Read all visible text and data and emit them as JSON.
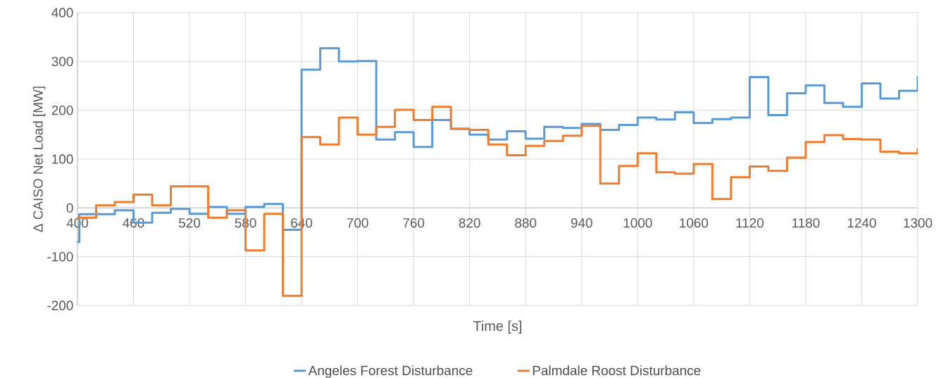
{
  "chart_data": {
    "type": "step",
    "xlabel": "Time [s]",
    "ylabel": "Δ CAISO Net Load [MW]",
    "x": [
      400,
      420,
      440,
      460,
      480,
      500,
      520,
      540,
      560,
      580,
      600,
      620,
      640,
      660,
      680,
      700,
      720,
      740,
      760,
      780,
      800,
      820,
      840,
      860,
      880,
      900,
      920,
      940,
      960,
      980,
      1000,
      1020,
      1040,
      1060,
      1080,
      1100,
      1120,
      1140,
      1160,
      1180,
      1200,
      1220,
      1240,
      1260,
      1280,
      1300
    ],
    "series": [
      {
        "name": "Angeles Forest Disturbance",
        "color": "#5b9bd5",
        "x": [
          400,
          402,
          420,
          440,
          460,
          480,
          500,
          520,
          540,
          560,
          580,
          600,
          620,
          640,
          660,
          680,
          700,
          720,
          740,
          760,
          780,
          800,
          820,
          840,
          860,
          880,
          900,
          920,
          940,
          960,
          980,
          1000,
          1020,
          1040,
          1060,
          1080,
          1100,
          1120,
          1140,
          1160,
          1180,
          1200,
          1220,
          1240,
          1260,
          1280,
          1300
        ],
        "values": [
          -70,
          -13,
          -13,
          -5,
          -30,
          -10,
          -2,
          -12,
          2,
          -12,
          2,
          8,
          -45,
          283,
          327,
          300,
          301,
          140,
          155,
          125,
          180,
          162,
          150,
          140,
          157,
          142,
          166,
          164,
          172,
          160,
          170,
          185,
          181,
          196,
          174,
          182,
          185,
          268,
          190,
          235,
          251,
          215,
          207,
          255,
          224,
          240,
          270
        ]
      },
      {
        "name": "Palmdale Roost Disturbance",
        "color": "#ed7d31",
        "values": [
          -20,
          5,
          12,
          27,
          5,
          44,
          44,
          -20,
          -5,
          -87,
          -12,
          -180,
          145,
          130,
          185,
          150,
          166,
          201,
          180,
          207,
          162,
          160,
          130,
          108,
          127,
          137,
          148,
          168,
          50,
          86,
          112,
          73,
          70,
          90,
          18,
          63,
          85,
          76,
          103,
          135,
          149,
          141,
          140,
          115,
          112,
          122
        ]
      }
    ],
    "xlim": [
      400,
      1300
    ],
    "xticks": [
      400,
      460,
      520,
      580,
      640,
      700,
      760,
      820,
      880,
      940,
      1000,
      1060,
      1120,
      1180,
      1240,
      1300
    ],
    "ylim": [
      -200,
      400
    ],
    "yticks": [
      -200,
      -100,
      0,
      100,
      200,
      300,
      400
    ],
    "grid": true,
    "legend": "bottom"
  }
}
